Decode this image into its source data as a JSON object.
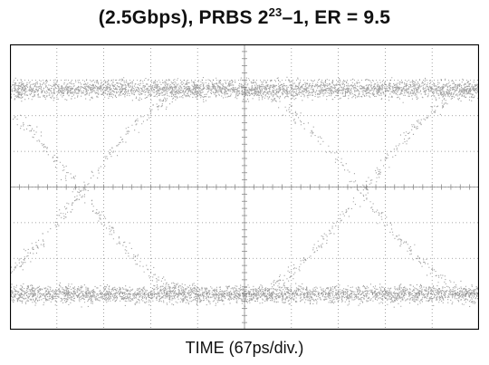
{
  "chart_data": {
    "type": "eye diagram",
    "title_main": "(2.5Gbps), PRBS 2",
    "title_exponent": "23",
    "title_rest": "–1, ER = 9.5",
    "xlabel": "TIME (67ps/div.)",
    "x_divisions": 10,
    "y_divisions": 8,
    "grid": true,
    "unit_interval_divisions": 6,
    "crossings": [
      {
        "x_div": 1.5,
        "y_div": 4
      },
      {
        "x_div": 7.5,
        "y_div": 4
      }
    ],
    "levels": [
      {
        "name": "one",
        "y_div": 1.25
      },
      {
        "name": "zero",
        "y_div": 7.0
      }
    ]
  },
  "colors": {
    "trace": "#555555",
    "grid": "#8a8a8a",
    "frame": "#000000"
  }
}
